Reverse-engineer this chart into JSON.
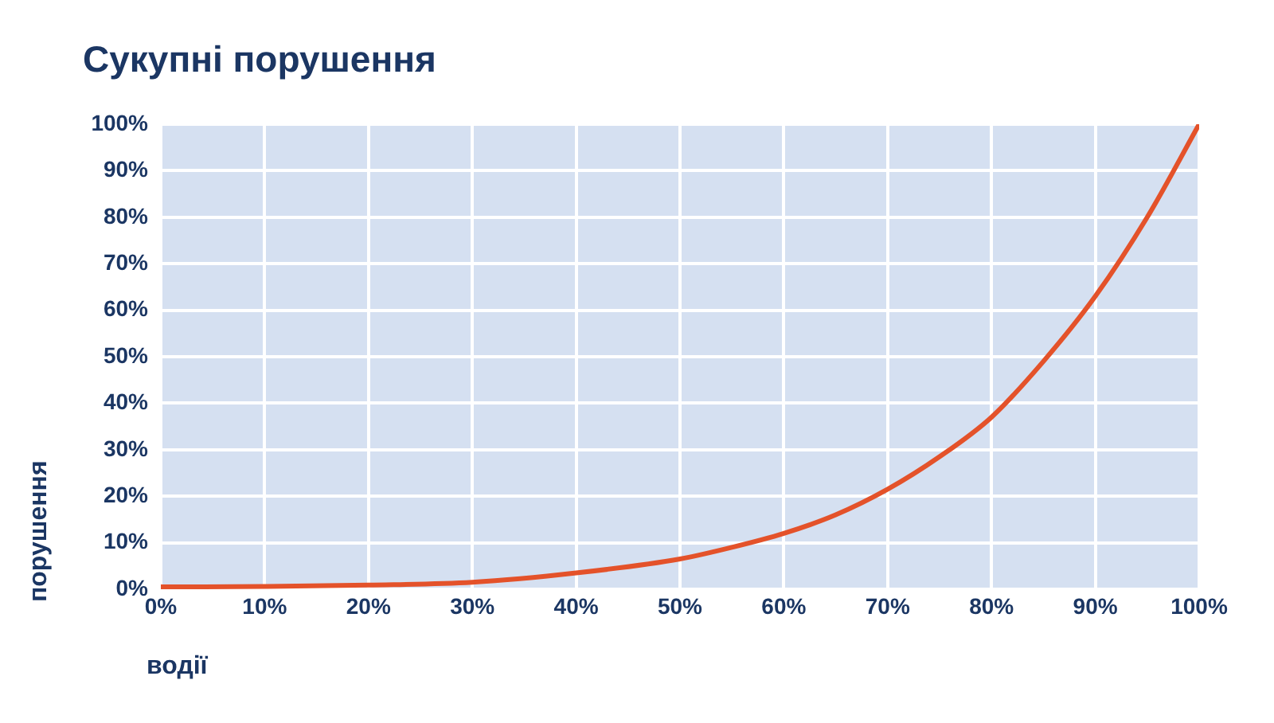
{
  "chart_data": {
    "type": "line",
    "title": "Сукупні порушення",
    "xlabel": "водії",
    "ylabel": "порушення",
    "x": [
      0,
      10,
      20,
      30,
      40,
      50,
      55,
      60,
      65,
      70,
      75,
      80,
      85,
      90,
      95,
      100
    ],
    "series": [
      {
        "color": "#e4522a",
        "values": [
          0.5,
          0.6,
          0.9,
          1.5,
          3.5,
          6.5,
          9,
          12,
          16,
          21.5,
          28.5,
          37,
          49,
          63,
          80,
          100
        ]
      }
    ],
    "xlim": [
      0,
      100
    ],
    "ylim": [
      0,
      100
    ],
    "xticks": [
      {
        "value": 0,
        "label": "0%"
      },
      {
        "value": 10,
        "label": "10%"
      },
      {
        "value": 20,
        "label": "20%"
      },
      {
        "value": 30,
        "label": "30%"
      },
      {
        "value": 40,
        "label": "40%"
      },
      {
        "value": 50,
        "label": "50%"
      },
      {
        "value": 60,
        "label": "60%"
      },
      {
        "value": 70,
        "label": "70%"
      },
      {
        "value": 80,
        "label": "80%"
      },
      {
        "value": 90,
        "label": "90%"
      },
      {
        "value": 100,
        "label": "100%"
      }
    ],
    "yticks": [
      {
        "value": 0,
        "label": "0%"
      },
      {
        "value": 10,
        "label": "10%"
      },
      {
        "value": 20,
        "label": "20%"
      },
      {
        "value": 30,
        "label": "30%"
      },
      {
        "value": 40,
        "label": "40%"
      },
      {
        "value": 50,
        "label": "50%"
      },
      {
        "value": 60,
        "label": "60%"
      },
      {
        "value": 70,
        "label": "70%"
      },
      {
        "value": 80,
        "label": "80%"
      },
      {
        "value": 90,
        "label": "90%"
      },
      {
        "value": 100,
        "label": "100%"
      }
    ],
    "grid": true,
    "legend": false,
    "marker": "none",
    "line_style": "solid"
  }
}
